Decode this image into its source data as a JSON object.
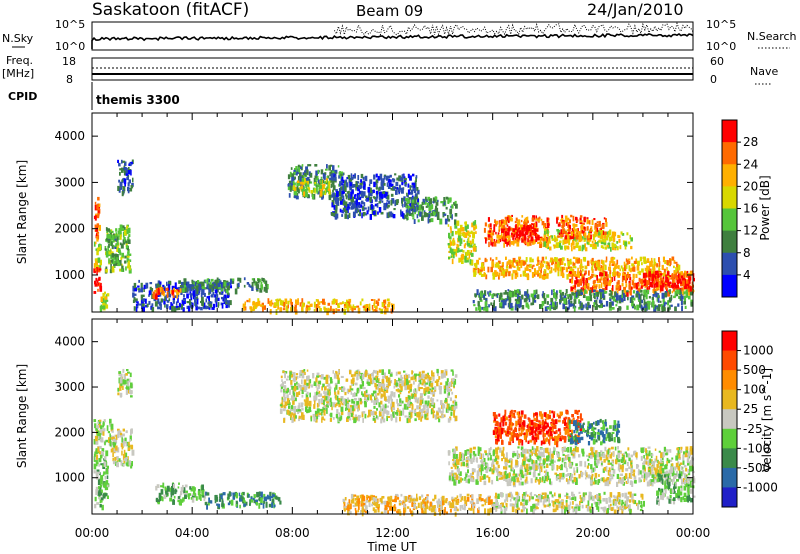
{
  "header": {
    "station": "Saskatoon (fitACF)",
    "beam": "Beam 09",
    "date": "24/Jan/2010"
  },
  "top_panels": {
    "nsky_label": "N.Sky",
    "nsky_ticks": [
      "10^5",
      "10^0"
    ],
    "nsearch_ticks": [
      "10^5",
      "10^0"
    ],
    "nsearch_label": "N.Search",
    "freq_label": "Freq.",
    "freq_unit": "[MHz]",
    "freq_ticks": [
      "18",
      "8"
    ],
    "nave_ticks": [
      "60",
      "0"
    ],
    "nave_label": "Nave",
    "cpid_label": "CPID",
    "cpid_value": "themis 3300"
  },
  "chart_data": [
    {
      "type": "heatmap",
      "title": "",
      "ylabel": "Slant Range [km]",
      "xlabel": "Time UT",
      "y_ticks": [
        1000,
        2000,
        3000,
        4000
      ],
      "ylim": [
        200,
        4500
      ],
      "x_tick_labels": [
        "00:00",
        "04:00",
        "08:00",
        "12:00",
        "16:00",
        "20:00",
        "00:00"
      ],
      "colorbar": {
        "label": "Power [dB]",
        "tick_labels": [
          "4",
          "8",
          "12",
          "16",
          "20",
          "24",
          "28"
        ],
        "colors": [
          "#0000ff",
          "#2d4faf",
          "#3f7f3f",
          "#55c53a",
          "#d8d800",
          "#ffb000",
          "#ff6a00",
          "#ff0000"
        ]
      },
      "regions": [
        {
          "t0": 0.05,
          "t1": 0.3,
          "r0": 1800,
          "r1": 2700,
          "level": 6
        },
        {
          "t0": 0.05,
          "t1": 0.3,
          "r0": 1200,
          "r1": 1800,
          "level": 4
        },
        {
          "t0": 0.05,
          "t1": 0.3,
          "r0": 650,
          "r1": 1200,
          "level": 7
        },
        {
          "t0": 0.3,
          "t1": 0.6,
          "r0": 300,
          "r1": 650,
          "level": 4
        },
        {
          "t0": 0.5,
          "t1": 1.5,
          "r0": 1100,
          "r1": 2100,
          "level": 3
        },
        {
          "t0": 0.55,
          "t1": 1.0,
          "r0": 1300,
          "r1": 1900,
          "level": 2
        },
        {
          "t0": 1.0,
          "t1": 1.6,
          "r0": 2800,
          "r1": 3500,
          "level": 1
        },
        {
          "t0": 1.6,
          "t1": 5.5,
          "r0": 300,
          "r1": 900,
          "level": 1
        },
        {
          "t0": 2.2,
          "t1": 3.5,
          "r0": 550,
          "r1": 750,
          "level": 6
        },
        {
          "t0": 3.5,
          "t1": 7.0,
          "r0": 700,
          "r1": 950,
          "level": 2
        },
        {
          "t0": 6.0,
          "t1": 12.0,
          "r0": 250,
          "r1": 500,
          "level": 5
        },
        {
          "t0": 7.8,
          "t1": 10.0,
          "r0": 2700,
          "r1": 3400,
          "level": 2
        },
        {
          "t0": 8.0,
          "t1": 9.5,
          "r0": 2800,
          "r1": 3100,
          "level": 4
        },
        {
          "t0": 9.5,
          "t1": 13.0,
          "r0": 2300,
          "r1": 3200,
          "level": 1
        },
        {
          "t0": 12.5,
          "t1": 14.5,
          "r0": 2200,
          "r1": 2700,
          "level": 2
        },
        {
          "t0": 14.2,
          "t1": 15.3,
          "r0": 1300,
          "r1": 2200,
          "level": 4
        },
        {
          "t0": 15.2,
          "t1": 23.5,
          "r0": 1000,
          "r1": 1400,
          "level": 5
        },
        {
          "t0": 19.0,
          "t1": 24.0,
          "r0": 650,
          "r1": 1100,
          "level": 6
        },
        {
          "t0": 22.0,
          "t1": 24.0,
          "r0": 750,
          "r1": 1050,
          "level": 7
        },
        {
          "t0": 15.6,
          "t1": 18.2,
          "r0": 1700,
          "r1": 2300,
          "level": 6
        },
        {
          "t0": 16.2,
          "t1": 17.8,
          "r0": 1800,
          "r1": 2100,
          "level": 7
        },
        {
          "t0": 18.0,
          "t1": 21.5,
          "r0": 1600,
          "r1": 2000,
          "level": 4
        },
        {
          "t0": 18.5,
          "t1": 20.5,
          "r0": 1850,
          "r1": 2300,
          "level": 6
        },
        {
          "t0": 15.2,
          "t1": 24.0,
          "r0": 300,
          "r1": 700,
          "level": 2
        }
      ]
    },
    {
      "type": "heatmap",
      "title": "",
      "ylabel": "Slant Range [km]",
      "xlabel": "Time UT",
      "y_ticks": [
        1000,
        2000,
        3000,
        4000
      ],
      "ylim": [
        200,
        4500
      ],
      "x_tick_labels": [
        "00:00",
        "04:00",
        "08:00",
        "12:00",
        "16:00",
        "20:00",
        "00:00"
      ],
      "colorbar": {
        "label": "Velocity [m s^-1]",
        "tick_labels": [
          "1000",
          "500",
          "100",
          "25",
          "-25",
          "-100",
          "-500",
          "-1000"
        ],
        "colors": [
          "#2020c8",
          "#2a6aa8",
          "#3a8a4a",
          "#5ecf3a",
          "#c8c8c0",
          "#e8b820",
          "#ff8c00",
          "#ff4a00",
          "#ff0000"
        ]
      },
      "regions": [
        {
          "t0": 0.05,
          "t1": 0.6,
          "r0": 400,
          "r1": 1500,
          "level": 3
        },
        {
          "t0": 0.05,
          "t1": 0.8,
          "r0": 1500,
          "r1": 2300,
          "level": 4
        },
        {
          "t0": 0.8,
          "t1": 1.6,
          "r0": 1300,
          "r1": 2100,
          "level": 4
        },
        {
          "t0": 1.0,
          "t1": 1.6,
          "r0": 2800,
          "r1": 3400,
          "level": 4
        },
        {
          "t0": 2.5,
          "t1": 4.5,
          "r0": 500,
          "r1": 900,
          "level": 3
        },
        {
          "t0": 4.5,
          "t1": 7.5,
          "r0": 400,
          "r1": 700,
          "level": 2
        },
        {
          "t0": 7.5,
          "t1": 14.5,
          "r0": 2300,
          "r1": 3400,
          "level": 4
        },
        {
          "t0": 10.0,
          "t1": 16.0,
          "r0": 250,
          "r1": 650,
          "level": 5
        },
        {
          "t0": 14.2,
          "t1": 24.0,
          "r0": 900,
          "r1": 1700,
          "level": 4
        },
        {
          "t0": 16.0,
          "t1": 19.5,
          "r0": 1800,
          "r1": 2500,
          "level": 7
        },
        {
          "t0": 17.5,
          "t1": 18.5,
          "r0": 2000,
          "r1": 2300,
          "level": 8
        },
        {
          "t0": 19.0,
          "t1": 21.0,
          "r0": 1800,
          "r1": 2300,
          "level": 2
        },
        {
          "t0": 22.5,
          "t1": 24.0,
          "r0": 500,
          "r1": 1100,
          "level": 3
        },
        {
          "t0": 16.0,
          "t1": 22.0,
          "r0": 300,
          "r1": 700,
          "level": 4
        }
      ]
    }
  ]
}
